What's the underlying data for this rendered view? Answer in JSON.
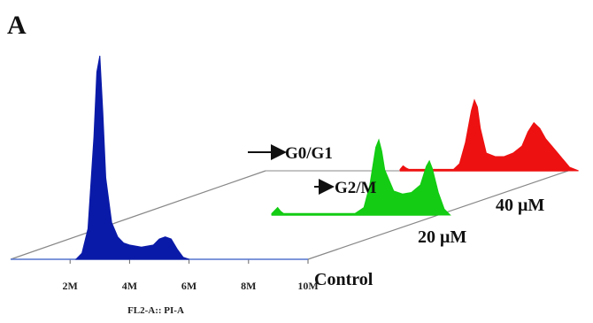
{
  "panel_label": "A",
  "chart_data": {
    "type": "area",
    "title": "",
    "xlabel": "FL2-A:: PI-A",
    "xlim": [
      0,
      10
    ],
    "x_unit": "M",
    "x_ticks": [
      {
        "value": 2,
        "label": "2M"
      },
      {
        "value": 4,
        "label": "4M"
      },
      {
        "value": 6,
        "label": "6M"
      },
      {
        "value": 8,
        "label": "8M"
      },
      {
        "value": 10,
        "label": "10M"
      }
    ],
    "ylim": [
      0,
      1
    ],
    "series": [
      {
        "name": "Control",
        "color": "#0a1aa8",
        "baseline_color": "#5d7fd8",
        "x": [
          2.2,
          2.4,
          2.6,
          2.8,
          2.9,
          3.0,
          3.1,
          3.2,
          3.4,
          3.6,
          3.8,
          4.0,
          4.4,
          4.8,
          5.0,
          5.2,
          5.4,
          5.6,
          5.8,
          6.0
        ],
        "y": [
          0,
          0.03,
          0.15,
          0.6,
          0.92,
          1.0,
          0.72,
          0.4,
          0.18,
          0.11,
          0.08,
          0.07,
          0.06,
          0.07,
          0.1,
          0.11,
          0.1,
          0.05,
          0.01,
          0
        ]
      },
      {
        "name": "20  μM",
        "color": "#13cc13",
        "baseline_color": "#13cc13",
        "x": [
          0.0,
          0.1,
          0.2,
          0.3,
          0.4,
          2.8,
          3.1,
          3.3,
          3.5,
          3.6,
          3.7,
          3.8,
          4.1,
          4.4,
          4.7,
          5.0,
          5.2,
          5.3,
          5.4,
          5.6,
          5.8,
          6.0
        ],
        "y": [
          0.02,
          0.06,
          0.1,
          0.05,
          0.02,
          0.02,
          0.1,
          0.4,
          0.9,
          1.0,
          0.85,
          0.6,
          0.32,
          0.28,
          0.3,
          0.4,
          0.65,
          0.72,
          0.62,
          0.3,
          0.08,
          0
        ]
      },
      {
        "name": "40  μM",
        "color": "#ee1111",
        "baseline_color": "#ee1111",
        "x": [
          0.0,
          0.1,
          0.2,
          0.3,
          1.8,
          2.0,
          2.2,
          2.4,
          2.5,
          2.6,
          2.7,
          2.9,
          3.2,
          3.5,
          3.8,
          4.1,
          4.3,
          4.5,
          4.7,
          4.9,
          5.1,
          5.3,
          5.5,
          5.7,
          6.0
        ],
        "y": [
          0.02,
          0.07,
          0.04,
          0.02,
          0.02,
          0.1,
          0.4,
          0.85,
          1.0,
          0.9,
          0.6,
          0.25,
          0.2,
          0.2,
          0.25,
          0.35,
          0.55,
          0.68,
          0.6,
          0.45,
          0.35,
          0.25,
          0.15,
          0.05,
          0
        ]
      }
    ],
    "annotations": [
      {
        "text": "G0/G1",
        "series": "20  μM"
      },
      {
        "text": "G2/M",
        "series": "20  μM"
      }
    ]
  }
}
